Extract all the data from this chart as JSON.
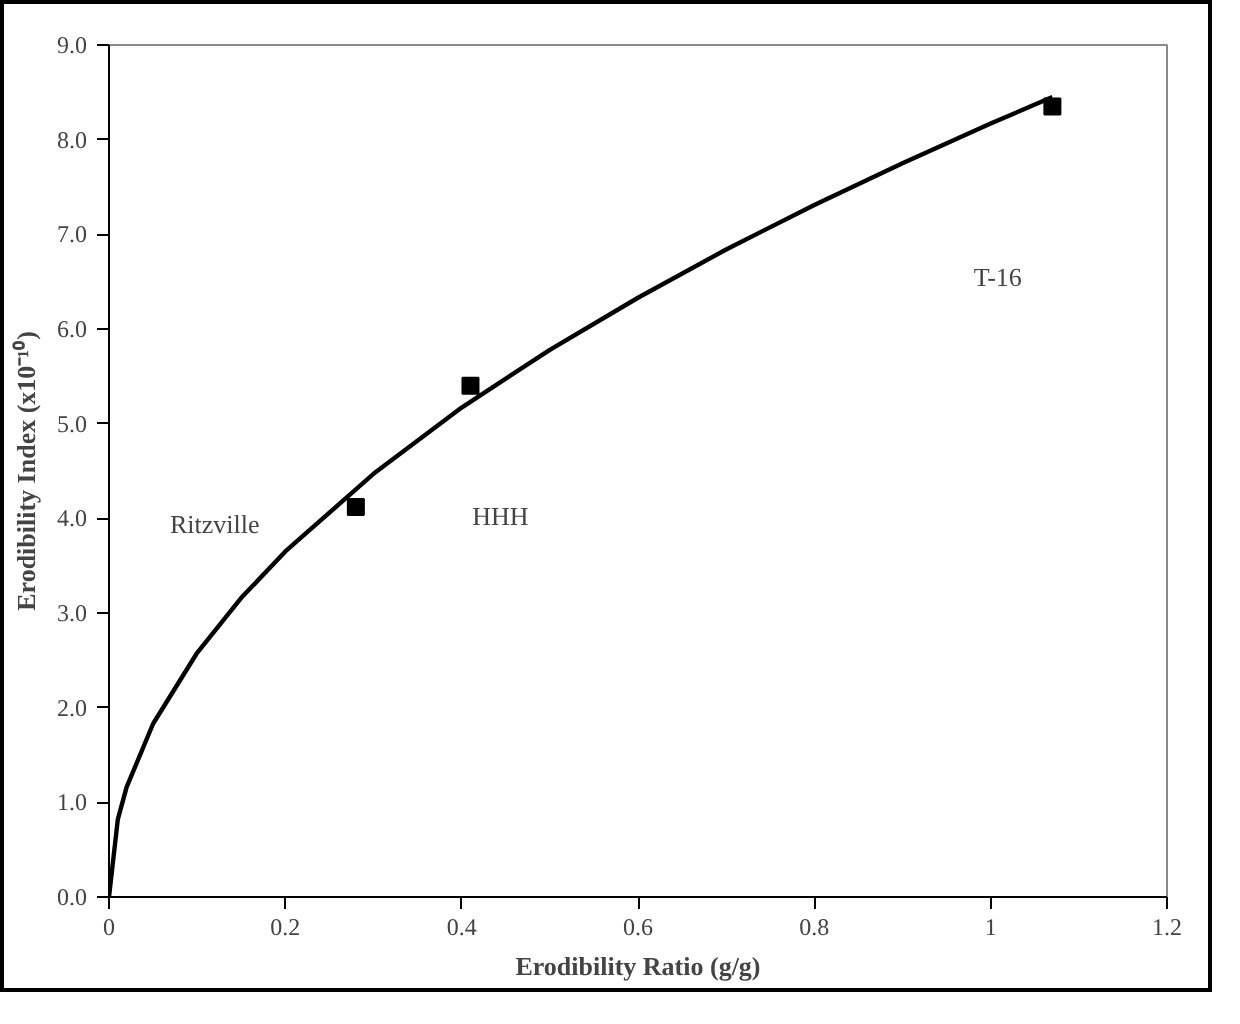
{
  "chart_data": {
    "type": "scatter",
    "xlabel": "Erodibility Ratio (g/g)",
    "ylabel": "Erodibility Index (x10⁻¹⁰)",
    "series": [
      {
        "color": "#000000",
        "marker": "square",
        "x": [
          0.28,
          0.41,
          1.07
        ],
        "values": [
          4.12,
          5.4,
          8.35
        ]
      },
      {
        "type": "line",
        "color": "#000000",
        "marker": "none",
        "x": [
          0,
          0.01,
          0.02,
          0.05,
          0.1,
          0.15,
          0.2,
          0.3,
          0.4,
          0.5,
          0.6,
          0.7,
          0.8,
          0.9,
          1.0,
          1.07
        ],
        "values": [
          0,
          0.82,
          1.16,
          1.83,
          2.58,
          3.16,
          3.65,
          4.47,
          5.17,
          5.78,
          6.33,
          6.84,
          7.31,
          7.75,
          8.17,
          8.45
        ]
      }
    ],
    "annotations": [
      "Ritzville",
      "HHH",
      "T-16"
    ],
    "xlim": [
      0,
      1.2
    ],
    "xticks": [
      0,
      0.2,
      0.4,
      0.6,
      0.8,
      1,
      1.2
    ],
    "ylim": [
      0,
      9
    ],
    "yticks": [
      {
        "value": 0,
        "label": "0.0"
      },
      {
        "value": 1,
        "label": "1.0"
      },
      {
        "value": 2,
        "label": "2.0"
      },
      {
        "value": 3,
        "label": "3.0"
      },
      {
        "value": 4,
        "label": "4.0"
      },
      {
        "value": 5,
        "label": "5.0"
      },
      {
        "value": 6,
        "label": "6.0"
      },
      {
        "value": 7,
        "label": "7.0"
      },
      {
        "value": 8,
        "label": "8.0"
      },
      {
        "value": 9,
        "label": "9.0"
      }
    ],
    "grid": false
  }
}
